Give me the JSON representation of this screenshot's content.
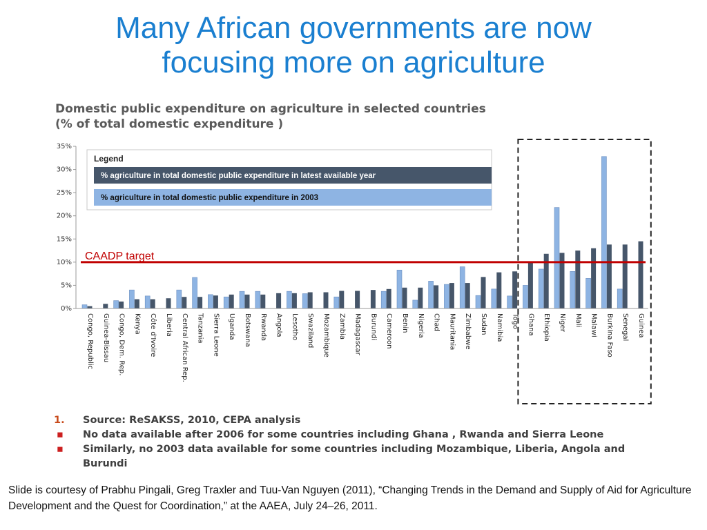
{
  "slide": {
    "title_line1": "Many African governments are now",
    "title_line2": "focusing more on agriculture"
  },
  "chart_data": {
    "type": "bar",
    "title_line1": "Domestic public expenditure on agriculture in selected countries",
    "title_line2": "(% of total domestic expenditure )",
    "ylim": [
      0,
      35
    ],
    "y_ticks": [
      "0%",
      "5%",
      "10%",
      "15%",
      "20%",
      "25%",
      "30%",
      "35%"
    ],
    "y_tick_values": [
      0,
      5,
      10,
      15,
      20,
      25,
      30,
      35
    ],
    "grid": false,
    "legend": {
      "title": "Legend",
      "position": "top-left"
    },
    "categories": [
      "Congo, Republic",
      "Guinea-Bissau",
      "Congo, Dem. Rep.",
      "Kenya",
      "Côte d'Ivoire",
      "Liberia",
      "Central African Rep.",
      "Tanzania",
      "Sierra Leone",
      "Uganda",
      "Botswana",
      "Rwanda",
      "Angola",
      "Lesotho",
      "Swaziland",
      "Mozambique",
      "Zambia",
      "Madagascar",
      "Burundi",
      "Cameroon",
      "Benin",
      "Nigeria",
      "Chad",
      "Mauritania",
      "Zimbabwe",
      "Sudan",
      "Namibia",
      "Togo",
      "Ghana",
      "Ethiopia",
      "Niger",
      "Mali",
      "Malawi",
      "Burkina Faso",
      "Senegal",
      "Guinea"
    ],
    "series": [
      {
        "name": "% agriculture in total domestic public expenditure in 2003",
        "color": "#8eb4e3",
        "values": [
          0.8,
          null,
          1.7,
          4.0,
          2.7,
          null,
          4.0,
          6.7,
          3.0,
          2.5,
          3.7,
          3.7,
          null,
          3.7,
          3.2,
          null,
          2.5,
          null,
          null,
          3.7,
          8.3,
          1.8,
          5.9,
          5.2,
          9.0,
          2.8,
          4.2,
          2.7,
          5.0,
          8.5,
          21.8,
          8.0,
          6.5,
          32.8,
          4.2,
          null
        ]
      },
      {
        "name": "% agriculture in total domestic public expenditure in latest available year",
        "color": "#46566a",
        "values": [
          0.5,
          1.0,
          1.5,
          2.0,
          2.0,
          2.2,
          2.5,
          2.5,
          2.8,
          3.0,
          3.0,
          3.0,
          3.3,
          3.3,
          3.5,
          3.5,
          3.8,
          3.8,
          4.0,
          4.2,
          4.5,
          4.5,
          5.0,
          5.5,
          5.5,
          6.8,
          7.8,
          8.0,
          10.0,
          11.8,
          12.0,
          12.5,
          13.0,
          13.8,
          13.8,
          14.5
        ]
      }
    ],
    "target_line": {
      "label": "CAADP target",
      "value": 10,
      "color": "#c00000"
    },
    "highlight_box": {
      "from_category": "Ghana",
      "to_category": "Guinea",
      "style": "dashed"
    }
  },
  "notes": [
    {
      "marker": "1.",
      "text": "Source: ReSAKSS,  2010, CEPA analysis"
    },
    {
      "marker": "▪",
      "text": "No data available after 2006  for some countries including Ghana , Rwanda and Sierra Leone"
    },
    {
      "marker": "▪",
      "text": "Similarly, no 2003 data available for some countries including Mozambique, Liberia, Angola and Burundi"
    }
  ],
  "credit": "Slide is courtesy of Prabhu Pingali,  Greg Traxler and Tuu-Van Nguyen (2011), “Changing Trends in the Demand and Supply of Aid for Agriculture Development and the Quest for Coordination,” at the AAEA, July 24–26, 2011."
}
